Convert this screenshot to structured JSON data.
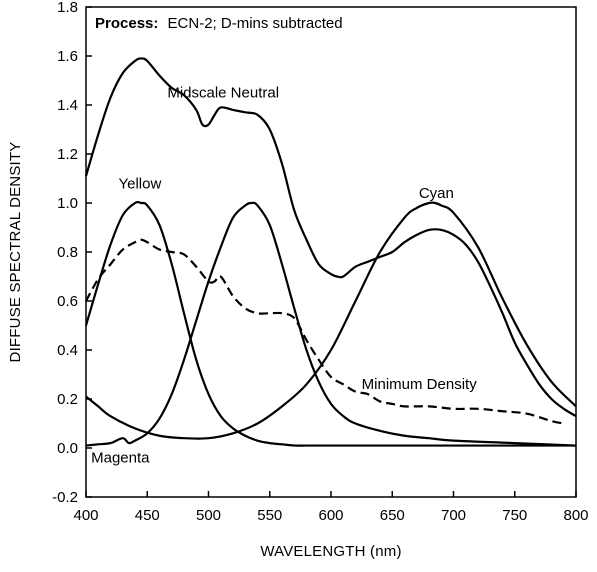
{
  "chart_data": {
    "type": "line",
    "process_note": {
      "label": "Process:",
      "text": "ECN-2; D-mins subtracted"
    },
    "xlabel": "WAVELENGTH (nm)",
    "ylabel": "DIFFUSE SPECTRAL DENSITY",
    "xlim": [
      400,
      800
    ],
    "ylim": [
      -0.2,
      1.8
    ],
    "xticks": [
      400,
      450,
      500,
      550,
      600,
      650,
      700,
      750,
      800
    ],
    "yticks": [
      -0.2,
      0.0,
      0.2,
      0.4,
      0.6,
      0.8,
      1.0,
      1.2,
      1.4,
      1.6,
      1.8
    ],
    "ytick_labels": [
      "-0.2",
      "0.0",
      "0.2",
      "0.4",
      "0.6",
      "0.8",
      "1.0",
      "1.2",
      "1.4",
      "1.6",
      "1.8"
    ],
    "grid": false,
    "series": [
      {
        "name": "Midscale Neutral",
        "style": "solid",
        "x": [
          400,
          410,
          420,
          430,
          440,
          445,
          450,
          460,
          470,
          480,
          490,
          495,
          500,
          505,
          510,
          520,
          530,
          540,
          550,
          560,
          570,
          580,
          590,
          600,
          605,
          610,
          620,
          630,
          640,
          650,
          660,
          670,
          680,
          690,
          700,
          710,
          720,
          730,
          740,
          750,
          760,
          770,
          780,
          790,
          800
        ],
        "y": [
          1.11,
          1.28,
          1.43,
          1.53,
          1.58,
          1.59,
          1.58,
          1.52,
          1.47,
          1.44,
          1.38,
          1.32,
          1.32,
          1.36,
          1.39,
          1.38,
          1.37,
          1.36,
          1.3,
          1.16,
          0.97,
          0.85,
          0.75,
          0.71,
          0.7,
          0.7,
          0.74,
          0.76,
          0.78,
          0.8,
          0.84,
          0.87,
          0.89,
          0.89,
          0.87,
          0.83,
          0.76,
          0.66,
          0.55,
          0.43,
          0.34,
          0.26,
          0.2,
          0.16,
          0.13
        ]
      },
      {
        "name": "Yellow",
        "style": "solid",
        "x": [
          400,
          410,
          420,
          430,
          440,
          445,
          450,
          460,
          470,
          480,
          490,
          500,
          510,
          520,
          530,
          540,
          550,
          560,
          570,
          580,
          600,
          650,
          700,
          750,
          800
        ],
        "y": [
          0.5,
          0.67,
          0.83,
          0.95,
          1.0,
          1.0,
          0.99,
          0.91,
          0.75,
          0.55,
          0.36,
          0.22,
          0.13,
          0.08,
          0.05,
          0.03,
          0.02,
          0.015,
          0.01,
          0.01,
          0.01,
          0.01,
          0.01,
          0.01,
          0.01
        ]
      },
      {
        "name": "Magenta",
        "style": "solid",
        "x": [
          400,
          410,
          420,
          430,
          435,
          440,
          450,
          460,
          470,
          480,
          490,
          500,
          510,
          520,
          530,
          535,
          540,
          550,
          560,
          570,
          580,
          590,
          600,
          610,
          620,
          640,
          660,
          680,
          700,
          750,
          800
        ],
        "y": [
          0.01,
          0.015,
          0.02,
          0.04,
          0.02,
          0.03,
          0.06,
          0.12,
          0.22,
          0.36,
          0.52,
          0.68,
          0.82,
          0.94,
          0.99,
          1.0,
          0.99,
          0.91,
          0.75,
          0.57,
          0.4,
          0.27,
          0.18,
          0.13,
          0.1,
          0.07,
          0.05,
          0.04,
          0.03,
          0.02,
          0.01
        ]
      },
      {
        "name": "Cyan",
        "style": "solid",
        "x": [
          400,
          410,
          420,
          440,
          460,
          480,
          500,
          520,
          540,
          560,
          580,
          600,
          620,
          640,
          660,
          670,
          680,
          685,
          690,
          700,
          720,
          740,
          760,
          780,
          800
        ],
        "y": [
          0.21,
          0.17,
          0.13,
          0.08,
          0.05,
          0.04,
          0.04,
          0.06,
          0.1,
          0.17,
          0.26,
          0.4,
          0.6,
          0.8,
          0.94,
          0.98,
          1.0,
          1.0,
          0.99,
          0.96,
          0.82,
          0.61,
          0.42,
          0.27,
          0.17
        ]
      },
      {
        "name": "Minimum Density",
        "style": "dashed",
        "x": [
          400,
          410,
          420,
          430,
          440,
          445,
          450,
          460,
          470,
          480,
          490,
          500,
          505,
          510,
          520,
          530,
          540,
          550,
          560,
          570,
          580,
          590,
          600,
          610,
          620,
          630,
          640,
          650,
          660,
          680,
          700,
          720,
          740,
          760,
          780,
          790
        ],
        "y": [
          0.6,
          0.69,
          0.75,
          0.81,
          0.84,
          0.85,
          0.84,
          0.81,
          0.8,
          0.79,
          0.74,
          0.68,
          0.68,
          0.7,
          0.62,
          0.57,
          0.55,
          0.55,
          0.55,
          0.53,
          0.44,
          0.36,
          0.29,
          0.26,
          0.23,
          0.22,
          0.19,
          0.18,
          0.17,
          0.17,
          0.16,
          0.16,
          0.15,
          0.14,
          0.11,
          0.1
        ]
      }
    ],
    "annotations": [
      {
        "text": "Midscale Neutral",
        "x": 512,
        "y": 1.43
      },
      {
        "text": "Yellow",
        "x": 444,
        "y": 1.06
      },
      {
        "text": "Cyan",
        "x": 686,
        "y": 1.02
      },
      {
        "text": "Minimum Density",
        "x": 672,
        "y": 0.24
      },
      {
        "text": "Magenta",
        "x": 428,
        "y": -0.06
      }
    ]
  }
}
